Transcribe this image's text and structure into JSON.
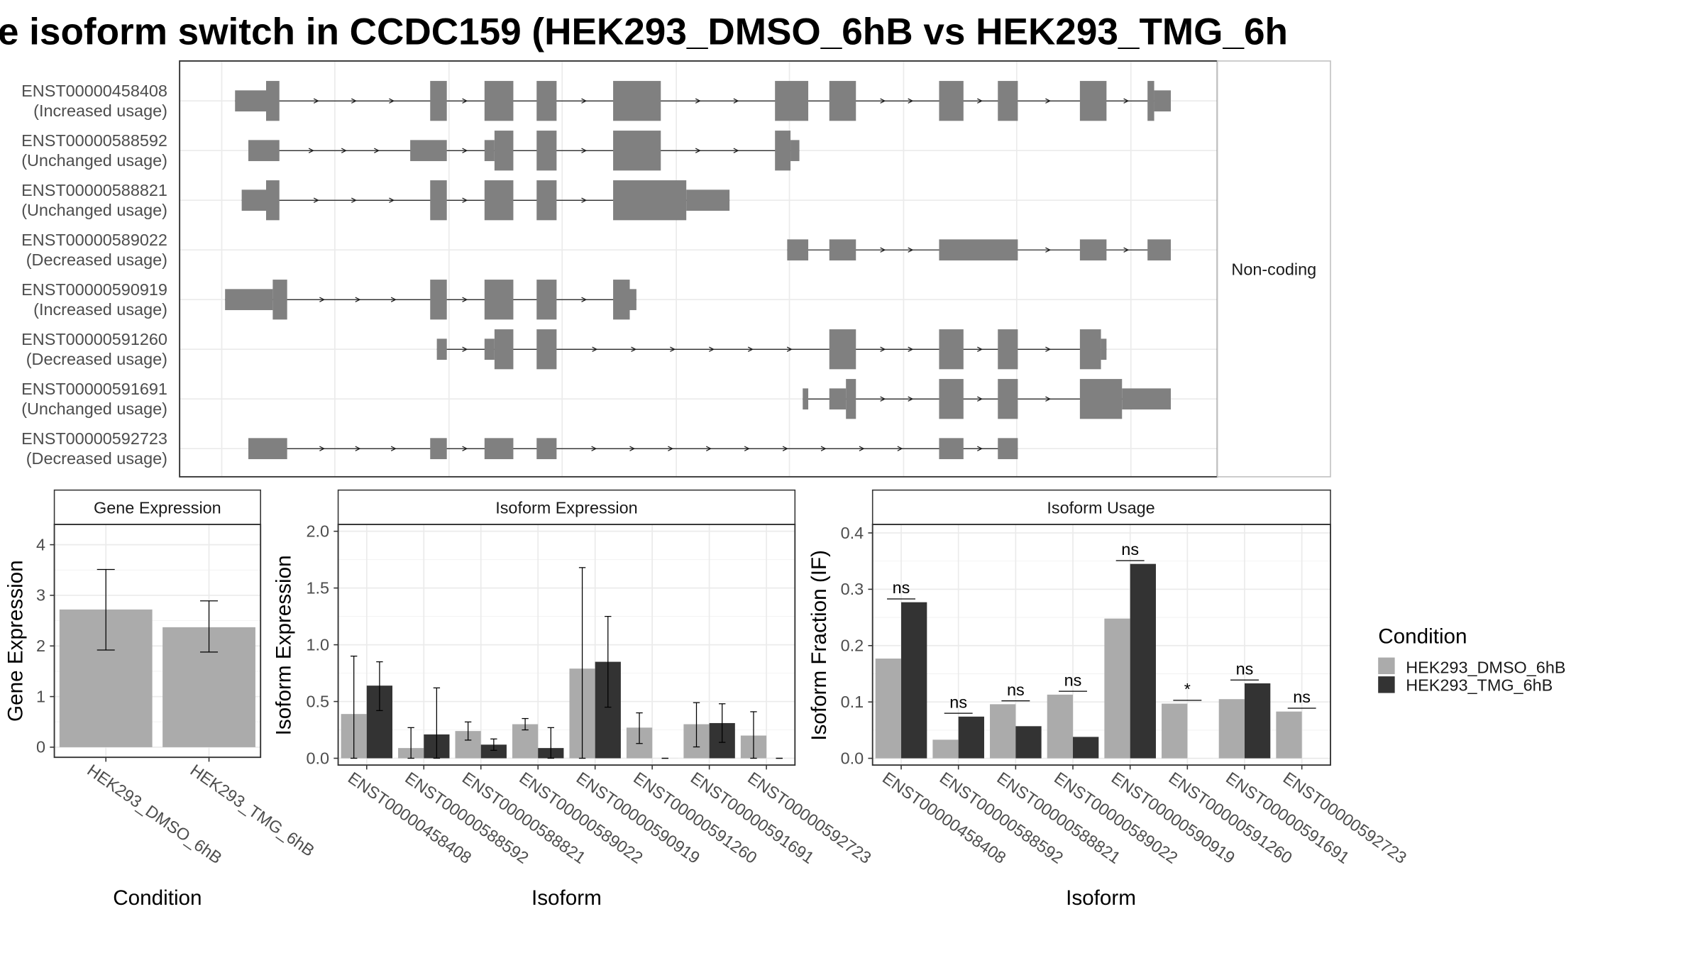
{
  "title": "e isoform switch in CCDC159 (HEK293_DMSO_6hB vs HEK293_TMG_6h",
  "structure_panel": {
    "strip_label": "Non-coding",
    "isoforms": [
      {
        "id": "ENST00000458408",
        "status": "(Increased usage)"
      },
      {
        "id": "ENST00000588592",
        "status": "(Unchanged usage)"
      },
      {
        "id": "ENST00000588821",
        "status": "(Unchanged usage)"
      },
      {
        "id": "ENST00000589022",
        "status": "(Decreased usage)"
      },
      {
        "id": "ENST00000590919",
        "status": "(Increased usage)"
      },
      {
        "id": "ENST00000591260",
        "status": "(Decreased usage)"
      },
      {
        "id": "ENST00000591691",
        "status": "(Unchanged usage)"
      },
      {
        "id": "ENST00000592723",
        "status": "(Decreased usage)"
      }
    ]
  },
  "colors": {
    "exon": "#808080",
    "dmso": "#ababab",
    "tmg": "#333333",
    "grid": "#ebebeb",
    "border": "#333333",
    "strip_bg": "#ffffff"
  },
  "chart_data": [
    {
      "type": "bar",
      "title": "Gene Expression",
      "xlabel": "Condition",
      "ylabel": "Gene Expression",
      "ylim": [
        -0.2,
        4.4
      ],
      "yticks": [
        "0",
        "1",
        "2",
        "3",
        "4"
      ],
      "categories": [
        "HEK293_DMSO_6hB",
        "HEK293_TMG_6hB"
      ],
      "values": [
        2.72,
        2.37
      ],
      "error_bars": [
        [
          1.92,
          3.51
        ],
        [
          1.88,
          2.89
        ]
      ]
    },
    {
      "type": "bar",
      "title": "Isoform Expression",
      "xlabel": "Isoform",
      "ylabel": "Isoform Expression",
      "ylim": [
        -0.06,
        2.06
      ],
      "yticks": [
        "0.0",
        "0.5",
        "1.0",
        "1.5",
        "2.0"
      ],
      "categories": [
        "ENST00000458408",
        "ENST00000588592",
        "ENST00000588821",
        "ENST00000589022",
        "ENST00000590919",
        "ENST00000591260",
        "ENST00000591691",
        "ENST00000592723"
      ],
      "series": [
        {
          "name": "HEK293_DMSO_6hB",
          "values": [
            0.39,
            0.09,
            0.24,
            0.3,
            0.79,
            0.27,
            0.3,
            0.2
          ],
          "error_bars": [
            [
              0.0,
              0.9
            ],
            [
              0.0,
              0.27
            ],
            [
              0.16,
              0.32
            ],
            [
              0.25,
              0.35
            ],
            [
              0.0,
              1.68
            ],
            [
              0.13,
              0.4
            ],
            [
              0.1,
              0.49
            ],
            [
              0.0,
              0.41
            ]
          ]
        },
        {
          "name": "HEK293_TMG_6hB",
          "values": [
            0.64,
            0.21,
            0.12,
            0.09,
            0.85,
            0.0,
            0.31,
            0.0
          ],
          "error_bars": [
            [
              0.42,
              0.85
            ],
            [
              0.0,
              0.62
            ],
            [
              0.07,
              0.17
            ],
            [
              0.0,
              0.27
            ],
            [
              0.45,
              1.25
            ],
            [
              0.0,
              0.0
            ],
            [
              0.14,
              0.48
            ],
            [
              0.0,
              0.0
            ]
          ]
        }
      ]
    },
    {
      "type": "bar",
      "title": "Isoform Usage",
      "xlabel": "Isoform",
      "ylabel": "Isoform Fraction (IF)",
      "ylim": [
        -0.012,
        0.415
      ],
      "yticks": [
        "0.0",
        "0.1",
        "0.2",
        "0.3",
        "0.4"
      ],
      "categories": [
        "ENST00000458408",
        "ENST00000588592",
        "ENST00000588821",
        "ENST00000589022",
        "ENST00000590919",
        "ENST00000591260",
        "ENST00000591691",
        "ENST00000592723"
      ],
      "series": [
        {
          "name": "HEK293_DMSO_6hB",
          "values": [
            0.177,
            0.033,
            0.096,
            0.113,
            0.248,
            0.097,
            0.105,
            0.083
          ]
        },
        {
          "name": "HEK293_TMG_6hB",
          "values": [
            0.277,
            0.074,
            0.057,
            0.038,
            0.345,
            0.0,
            0.133,
            0.0
          ]
        }
      ],
      "significance": [
        "ns",
        "ns",
        "ns",
        "ns",
        "ns",
        "*",
        "ns",
        "ns"
      ]
    }
  ],
  "legend": {
    "title": "Condition",
    "items": [
      "HEK293_DMSO_6hB",
      "HEK293_TMG_6hB"
    ]
  }
}
